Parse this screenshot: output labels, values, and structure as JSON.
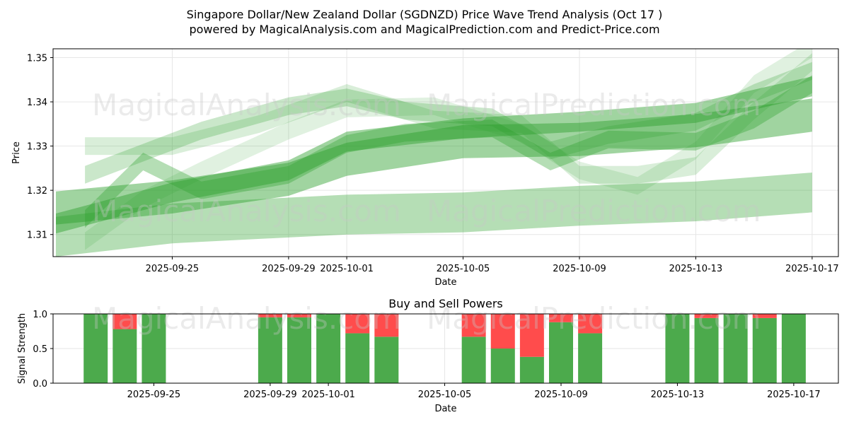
{
  "header": {
    "title_line1": "Singapore Dollar/New Zealand Dollar (SGDNZD) Price Wave Trend Analysis (Oct 17 )",
    "title_line2": "powered by MagicalAnalysis.com and MagicalPrediction.com and Predict-Price.com"
  },
  "watermarks": [
    "MagicalAnalysis.com",
    "MagicalPrediction.com"
  ],
  "colors": {
    "band": "#2ca02c",
    "buy": "#4caa4c",
    "sell": "#ff4c4c",
    "grid": "#e6e6e6"
  },
  "chart_data": [
    {
      "type": "area",
      "xlabel": "Date",
      "ylabel": "Price",
      "xlim": [
        "2025-09-21",
        "2025-10-18"
      ],
      "ylim": [
        1.305,
        1.352
      ],
      "x_ticks": [
        "2025-09-25",
        "2025-09-29",
        "2025-10-01",
        "2025-10-05",
        "2025-10-09",
        "2025-10-13",
        "2025-10-17"
      ],
      "y_ticks": [
        1.31,
        1.32,
        1.33,
        1.34,
        1.35
      ],
      "grid": true,
      "bands": [
        {
          "alpha": 0.35,
          "points": [
            [
              "2025-09-21",
              1.3095
            ],
            [
              "2025-09-25",
              1.3125
            ],
            [
              "2025-10-01",
              1.3145
            ],
            [
              "2025-10-05",
              1.315
            ],
            [
              "2025-10-09",
              1.3165
            ],
            [
              "2025-10-13",
              1.3175
            ],
            [
              "2025-10-17",
              1.3195
            ]
          ],
          "width": 0.009
        },
        {
          "alpha": 0.45,
          "points": [
            [
              "2025-09-21",
              1.316
            ],
            [
              "2025-09-25",
              1.3185
            ],
            [
              "2025-09-29",
              1.3225
            ],
            [
              "2025-10-01",
              1.327
            ],
            [
              "2025-10-05",
              1.331
            ],
            [
              "2025-10-09",
              1.3315
            ],
            [
              "2025-10-13",
              1.3335
            ],
            [
              "2025-10-17",
              1.337
            ]
          ],
          "width": 0.0075
        },
        {
          "alpha": 0.45,
          "points": [
            [
              "2025-09-21",
              1.3125
            ],
            [
              "2025-09-25",
              1.3195
            ],
            [
              "2025-09-29",
              1.3245
            ],
            [
              "2025-10-01",
              1.331
            ],
            [
              "2025-10-05",
              1.334
            ],
            [
              "2025-10-09",
              1.3355
            ],
            [
              "2025-10-13",
              1.3375
            ],
            [
              "2025-10-17",
              1.3435
            ]
          ],
          "width": 0.0045
        },
        {
          "alpha": 0.35,
          "points": [
            [
              "2025-09-22",
              1.3135
            ],
            [
              "2025-09-24",
              1.3265
            ],
            [
              "2025-09-26",
              1.32
            ],
            [
              "2025-09-29",
              1.3235
            ],
            [
              "2025-10-01",
              1.3305
            ],
            [
              "2025-10-03",
              1.333
            ],
            [
              "2025-10-06",
              1.334
            ],
            [
              "2025-10-08",
              1.3265
            ],
            [
              "2025-10-10",
              1.3315
            ],
            [
              "2025-10-13",
              1.331
            ],
            [
              "2025-10-15",
              1.336
            ],
            [
              "2025-10-17",
              1.344
            ]
          ],
          "width": 0.004
        },
        {
          "alpha": 0.25,
          "points": [
            [
              "2025-09-22",
              1.3235
            ],
            [
              "2025-09-24",
              1.3285
            ],
            [
              "2025-09-26",
              1.3335
            ],
            [
              "2025-09-29",
              1.339
            ],
            [
              "2025-10-01",
              1.341
            ],
            [
              "2025-10-03",
              1.338
            ],
            [
              "2025-10-06",
              1.3365
            ],
            [
              "2025-10-08",
              1.329
            ],
            [
              "2025-10-10",
              1.3325
            ],
            [
              "2025-10-13",
              1.3355
            ],
            [
              "2025-10-15",
              1.342
            ],
            [
              "2025-10-17",
              1.347
            ]
          ],
          "width": 0.004
        },
        {
          "alpha": 0.18,
          "points": [
            [
              "2025-09-22",
              1.33
            ],
            [
              "2025-09-25",
              1.33
            ],
            [
              "2025-09-28",
              1.335
            ],
            [
              "2025-10-01",
              1.342
            ],
            [
              "2025-10-04",
              1.336
            ],
            [
              "2025-10-07",
              1.335
            ],
            [
              "2025-10-09",
              1.3235
            ],
            [
              "2025-10-11",
              1.3235
            ],
            [
              "2025-10-13",
              1.3255
            ],
            [
              "2025-10-15",
              1.338
            ],
            [
              "2025-10-17",
              1.349
            ]
          ],
          "width": 0.004
        },
        {
          "alpha": 0.15,
          "points": [
            [
              "2025-09-22",
              1.3085
            ],
            [
              "2025-09-24",
              1.318
            ],
            [
              "2025-09-26",
              1.3245
            ],
            [
              "2025-09-29",
              1.3335
            ],
            [
              "2025-10-01",
              1.3385
            ],
            [
              "2025-10-04",
              1.339
            ],
            [
              "2025-10-07",
              1.333
            ],
            [
              "2025-10-09",
              1.3245
            ],
            [
              "2025-10-11",
              1.321
            ],
            [
              "2025-10-13",
              1.329
            ],
            [
              "2025-10-15",
              1.344
            ],
            [
              "2025-10-17",
              1.352
            ]
          ],
          "width": 0.004
        }
      ]
    },
    {
      "type": "bar",
      "title": "Buy and Sell Powers",
      "xlabel": "Date",
      "ylabel": "Signal Strength",
      "ylim": [
        0,
        1.0
      ],
      "y_ticks": [
        "0.0",
        "0.5",
        "1.0"
      ],
      "x_ticks": [
        "2025-09-25",
        "2025-09-29",
        "2025-10-01",
        "2025-10-05",
        "2025-10-09",
        "2025-10-13",
        "2025-10-17"
      ],
      "series": [
        {
          "name": "Buy",
          "values": [
            1.0,
            0.78,
            1.0,
            0.95,
            0.95,
            1.0,
            0.72,
            0.67,
            0.67,
            0.5,
            0.38,
            0.88,
            0.72,
            1.0,
            0.94,
            1.0,
            0.94,
            1.0
          ]
        },
        {
          "name": "Sell",
          "values": [
            0.0,
            0.22,
            0.0,
            0.05,
            0.05,
            0.0,
            0.28,
            0.33,
            0.33,
            0.5,
            0.62,
            0.12,
            0.28,
            0.0,
            0.06,
            0.0,
            0.06,
            0.0
          ]
        }
      ],
      "categories": [
        "2025-09-23",
        "2025-09-24",
        "2025-09-25",
        "2025-09-29",
        "2025-09-30",
        "2025-10-01",
        "2025-10-02",
        "2025-10-03",
        "2025-10-06",
        "2025-10-07",
        "2025-10-08",
        "2025-10-09",
        "2025-10-10",
        "2025-10-13",
        "2025-10-14",
        "2025-10-15",
        "2025-10-16",
        "2025-10-17"
      ]
    }
  ]
}
